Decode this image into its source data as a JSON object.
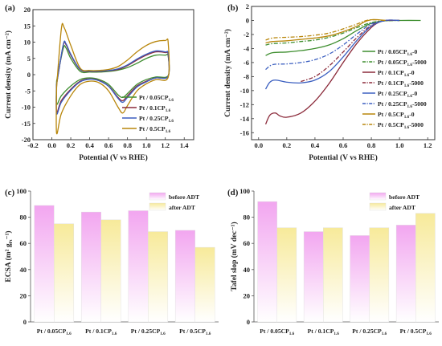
{
  "chart_data": [
    {
      "panel": "(a)",
      "type": "line",
      "xlabel": "Potential (V vs RHE)",
      "ylabel": "Current density (mA cm⁻²)",
      "xlim": [
        -0.2,
        1.5
      ],
      "ylim": [
        -20,
        20
      ],
      "xticks": [
        "-0.2",
        "0.0",
        "0.2",
        "0.4",
        "0.6",
        "0.8",
        "1.0",
        "1.2",
        "1.4"
      ],
      "yticks": [
        "-20",
        "-15",
        "-10",
        "-5",
        "0",
        "5",
        "10",
        "15",
        "20"
      ],
      "legend_position": "bottom-right",
      "series": [
        {
          "name": "Pt / 0.05CP",
          "name_sub": "1.6",
          "color": "#3e8e2f",
          "anodic": [
            [
              0.05,
              -2.0
            ],
            [
              0.12,
              8.0
            ],
            [
              0.15,
              8.2
            ],
            [
              0.2,
              5.0
            ],
            [
              0.3,
              1.0
            ],
            [
              0.4,
              0.8
            ],
            [
              0.5,
              0.8
            ],
            [
              0.6,
              1.0
            ],
            [
              0.7,
              1.4
            ],
            [
              0.8,
              2.2
            ],
            [
              0.9,
              3.5
            ],
            [
              1.0,
              5.0
            ],
            [
              1.1,
              6.0
            ],
            [
              1.2,
              6.0
            ],
            [
              1.23,
              5.8
            ]
          ],
          "cathodic": [
            [
              1.23,
              -0.3
            ],
            [
              1.1,
              -0.7
            ],
            [
              1.0,
              -1.5
            ],
            [
              0.9,
              -3.0
            ],
            [
              0.8,
              -5.8
            ],
            [
              0.75,
              -7.0
            ],
            [
              0.7,
              -6.2
            ],
            [
              0.6,
              -3.0
            ],
            [
              0.5,
              -1.5
            ],
            [
              0.4,
              -1.0
            ],
            [
              0.3,
              -1.5
            ],
            [
              0.2,
              -3.5
            ],
            [
              0.1,
              -6.5
            ],
            [
              0.05,
              -9.0
            ]
          ]
        },
        {
          "name": "Pt / 0.1CP",
          "name_sub": "1.6",
          "color": "#8b2a3a",
          "anodic": [
            [
              0.05,
              -3.0
            ],
            [
              0.12,
              9.0
            ],
            [
              0.15,
              9.2
            ],
            [
              0.2,
              6.0
            ],
            [
              0.3,
              1.5
            ],
            [
              0.4,
              1.0
            ],
            [
              0.5,
              1.0
            ],
            [
              0.6,
              1.2
            ],
            [
              0.7,
              1.6
            ],
            [
              0.8,
              2.8
            ],
            [
              0.9,
              4.5
            ],
            [
              1.0,
              6.0
            ],
            [
              1.1,
              7.0
            ],
            [
              1.2,
              6.8
            ],
            [
              1.23,
              6.2
            ]
          ],
          "cathodic": [
            [
              1.23,
              -0.5
            ],
            [
              1.1,
              -1.0
            ],
            [
              1.0,
              -2.0
            ],
            [
              0.9,
              -3.5
            ],
            [
              0.8,
              -6.5
            ],
            [
              0.75,
              -8.0
            ],
            [
              0.7,
              -7.0
            ],
            [
              0.6,
              -3.5
            ],
            [
              0.5,
              -1.8
            ],
            [
              0.4,
              -1.3
            ],
            [
              0.3,
              -2.0
            ],
            [
              0.2,
              -4.5
            ],
            [
              0.1,
              -8.0
            ],
            [
              0.05,
              -11.5
            ]
          ]
        },
        {
          "name": "Pt / 0.25CP",
          "name_sub": "1.6",
          "color": "#3b5fc0",
          "anodic": [
            [
              0.05,
              -3.0
            ],
            [
              0.12,
              9.2
            ],
            [
              0.15,
              9.5
            ],
            [
              0.2,
              6.3
            ],
            [
              0.3,
              1.6
            ],
            [
              0.4,
              1.1
            ],
            [
              0.5,
              1.1
            ],
            [
              0.6,
              1.3
            ],
            [
              0.7,
              1.8
            ],
            [
              0.8,
              3.0
            ],
            [
              0.9,
              4.8
            ],
            [
              1.0,
              6.3
            ],
            [
              1.1,
              7.3
            ],
            [
              1.2,
              7.0
            ],
            [
              1.23,
              6.5
            ]
          ],
          "cathodic": [
            [
              1.23,
              -0.5
            ],
            [
              1.1,
              -1.0
            ],
            [
              1.0,
              -2.2
            ],
            [
              0.9,
              -3.8
            ],
            [
              0.8,
              -7.0
            ],
            [
              0.75,
              -8.5
            ],
            [
              0.7,
              -7.3
            ],
            [
              0.6,
              -3.6
            ],
            [
              0.5,
              -1.9
            ],
            [
              0.4,
              -1.4
            ],
            [
              0.3,
              -2.2
            ],
            [
              0.2,
              -4.8
            ],
            [
              0.1,
              -8.5
            ],
            [
              0.05,
              -12.0
            ]
          ]
        },
        {
          "name": "Pt / 0.5CP",
          "name_sub": "1.6",
          "color": "#b8860b",
          "anodic": [
            [
              0.05,
              -4.0
            ],
            [
              0.1,
              14.0
            ],
            [
              0.13,
              14.5
            ],
            [
              0.2,
              9.0
            ],
            [
              0.3,
              2.0
            ],
            [
              0.4,
              1.3
            ],
            [
              0.5,
              1.3
            ],
            [
              0.6,
              1.6
            ],
            [
              0.7,
              2.5
            ],
            [
              0.8,
              4.5
            ],
            [
              0.9,
              7.0
            ],
            [
              1.0,
              9.0
            ],
            [
              1.1,
              10.2
            ],
            [
              1.2,
              10.5
            ],
            [
              1.23,
              10.0
            ]
          ],
          "cathodic": [
            [
              1.23,
              -0.8
            ],
            [
              1.1,
              -1.5
            ],
            [
              1.0,
              -2.8
            ],
            [
              0.9,
              -5.0
            ],
            [
              0.8,
              -9.5
            ],
            [
              0.75,
              -11.8
            ],
            [
              0.7,
              -10.0
            ],
            [
              0.6,
              -5.0
            ],
            [
              0.5,
              -2.5
            ],
            [
              0.4,
              -2.0
            ],
            [
              0.3,
              -3.0
            ],
            [
              0.2,
              -6.5
            ],
            [
              0.1,
              -12.0
            ],
            [
              0.05,
              -18.0
            ]
          ]
        }
      ]
    },
    {
      "panel": "(b)",
      "type": "line",
      "xlabel": "Potential (V vs RHE)",
      "ylabel": "Current density (mA cm⁻²)",
      "xlim": [
        -0.05,
        1.25
      ],
      "ylim": [
        -17,
        2
      ],
      "xticks": [
        "0.0",
        "0.2",
        "0.4",
        "0.6",
        "0.8",
        "1.0",
        "1.2"
      ],
      "yticks": [
        "2",
        "0",
        "-2",
        "-4",
        "-6",
        "-8",
        "-10",
        "-12",
        "-14",
        "-16"
      ],
      "legend_position": "right",
      "series": [
        {
          "name": "Pt / 0.05CP",
          "name_sub": "1.6",
          "name_suffix": "-0",
          "color": "#3e8e2f",
          "dash": "solid",
          "points": [
            [
              0.05,
              -5.0
            ],
            [
              0.1,
              -4.6
            ],
            [
              0.2,
              -4.5
            ],
            [
              0.3,
              -4.3
            ],
            [
              0.4,
              -4.0
            ],
            [
              0.5,
              -3.5
            ],
            [
              0.6,
              -2.6
            ],
            [
              0.7,
              -1.4
            ],
            [
              0.8,
              -0.4
            ],
            [
              0.9,
              -0.05
            ],
            [
              1.0,
              0.0
            ],
            [
              1.15,
              0.0
            ]
          ]
        },
        {
          "name": "Pt / 0.05CP",
          "name_sub": "1.6",
          "name_suffix": "-5000",
          "color": "#3e8e2f",
          "dash": "dashdot",
          "points": [
            [
              0.05,
              -3.5
            ],
            [
              0.1,
              -3.3
            ],
            [
              0.2,
              -3.2
            ],
            [
              0.3,
              -3.0
            ],
            [
              0.4,
              -2.8
            ],
            [
              0.5,
              -2.4
            ],
            [
              0.6,
              -1.8
            ],
            [
              0.7,
              -1.0
            ],
            [
              0.8,
              -0.3
            ],
            [
              0.9,
              -0.05
            ],
            [
              1.0,
              0.0
            ]
          ]
        },
        {
          "name": "Pt / 0.1CP",
          "name_sub": "1.6",
          "name_suffix": "-0",
          "color": "#8b2a3a",
          "dash": "solid",
          "points": [
            [
              0.05,
              -14.8
            ],
            [
              0.08,
              -13.5
            ],
            [
              0.12,
              -13.2
            ],
            [
              0.15,
              -13.6
            ],
            [
              0.2,
              -13.8
            ],
            [
              0.3,
              -13.2
            ],
            [
              0.4,
              -11.5
            ],
            [
              0.5,
              -9.0
            ],
            [
              0.6,
              -6.0
            ],
            [
              0.7,
              -3.2
            ],
            [
              0.8,
              -1.0
            ],
            [
              0.85,
              -0.3
            ],
            [
              0.9,
              0.0
            ],
            [
              1.0,
              0.0
            ]
          ]
        },
        {
          "name": "Pt / 0.1CP",
          "name_sub": "1.6",
          "name_suffix": "-5000",
          "color": "#8b2a3a",
          "dash": "dashdot",
          "points": [
            [
              0.3,
              -8.7
            ],
            [
              0.4,
              -8.0
            ],
            [
              0.5,
              -6.5
            ],
            [
              0.6,
              -4.5
            ],
            [
              0.7,
              -2.4
            ],
            [
              0.8,
              -0.7
            ],
            [
              0.9,
              0.0
            ],
            [
              1.0,
              0.0
            ]
          ]
        },
        {
          "name": "Pt / 0.25CP",
          "name_sub": "1.6",
          "name_suffix": "-0",
          "color": "#3b5fc0",
          "dash": "solid",
          "points": [
            [
              0.05,
              -9.8
            ],
            [
              0.08,
              -8.8
            ],
            [
              0.12,
              -8.5
            ],
            [
              0.2,
              -8.8
            ],
            [
              0.3,
              -8.9
            ],
            [
              0.4,
              -8.5
            ],
            [
              0.5,
              -7.3
            ],
            [
              0.6,
              -5.2
            ],
            [
              0.7,
              -2.8
            ],
            [
              0.8,
              -0.8
            ],
            [
              0.9,
              0.0
            ],
            [
              1.0,
              0.0
            ]
          ]
        },
        {
          "name": "Pt / 0.25CP",
          "name_sub": "1.6",
          "name_suffix": "-5000",
          "color": "#3b5fc0",
          "dash": "dashdot",
          "points": [
            [
              0.05,
              -7.0
            ],
            [
              0.1,
              -6.3
            ],
            [
              0.2,
              -6.2
            ],
            [
              0.3,
              -6.0
            ],
            [
              0.4,
              -5.6
            ],
            [
              0.5,
              -4.8
            ],
            [
              0.6,
              -3.5
            ],
            [
              0.7,
              -1.9
            ],
            [
              0.8,
              -0.5
            ],
            [
              0.9,
              0.0
            ]
          ]
        },
        {
          "name": "Pt / 0.5CP",
          "name_sub": "1.6",
          "name_suffix": "-0",
          "color": "#b8860b",
          "dash": "solid",
          "points": [
            [
              0.05,
              -3.2
            ],
            [
              0.1,
              -3.0
            ],
            [
              0.2,
              -2.9
            ],
            [
              0.3,
              -2.7
            ],
            [
              0.4,
              -2.5
            ],
            [
              0.5,
              -2.2
            ],
            [
              0.6,
              -1.6
            ],
            [
              0.7,
              -0.8
            ],
            [
              0.75,
              -0.2
            ],
            [
              0.8,
              0.1
            ],
            [
              0.85,
              0.1
            ],
            [
              0.9,
              0.0
            ]
          ]
        },
        {
          "name": "Pt / 0.5CP",
          "name_sub": "1.6",
          "name_suffix": "-5000",
          "color": "#b8860b",
          "dash": "dashdot",
          "points": [
            [
              0.05,
              -2.8
            ],
            [
              0.1,
              -2.5
            ],
            [
              0.2,
              -2.4
            ],
            [
              0.3,
              -2.3
            ],
            [
              0.4,
              -2.1
            ],
            [
              0.5,
              -1.8
            ],
            [
              0.6,
              -1.2
            ],
            [
              0.7,
              -0.5
            ],
            [
              0.75,
              -0.1
            ],
            [
              0.8,
              0.1
            ],
            [
              0.9,
              0.0
            ]
          ]
        }
      ]
    },
    {
      "panel": "(c)",
      "type": "bar",
      "ylabel": "ECSA (m² g",
      "ylabel_sub": "Pt",
      "ylabel_tail": "⁻¹)",
      "ylim": [
        0,
        100
      ],
      "yticks": [
        "0",
        "20",
        "40",
        "60",
        "80",
        "100"
      ],
      "categories": [
        "Pt / 0.05CP",
        "Pt / 0.1CP",
        "Pt / 0.25CP",
        "Pt / 0.5CP"
      ],
      "category_sub": "1.6",
      "legend_position": "top-right",
      "series": [
        {
          "name": "before ADT",
          "color": "#f2a6f0",
          "values": [
            89,
            84,
            85,
            70
          ]
        },
        {
          "name": "after ADT",
          "color": "#f7ea9a",
          "values": [
            75,
            78,
            69,
            57
          ]
        }
      ]
    },
    {
      "panel": "(d)",
      "type": "bar",
      "ylabel": "Tafel slop (mV dec",
      "ylabel_tail": "⁻¹)",
      "ylim": [
        0,
        100
      ],
      "yticks": [
        "0",
        "20",
        "40",
        "60",
        "80",
        "100"
      ],
      "categories": [
        "Pt / 0.05CP",
        "Pt / 0.1CP",
        "Pt / 0.25CP",
        "Pt / 0.5CP"
      ],
      "category_sub": "1.6",
      "legend_position": "top-right",
      "series": [
        {
          "name": "before ADT",
          "color": "#f2a6f0",
          "values": [
            92,
            69,
            66,
            74
          ]
        },
        {
          "name": "after ADT",
          "color": "#f7ea9a",
          "values": [
            72,
            72,
            72,
            83
          ]
        }
      ]
    }
  ]
}
